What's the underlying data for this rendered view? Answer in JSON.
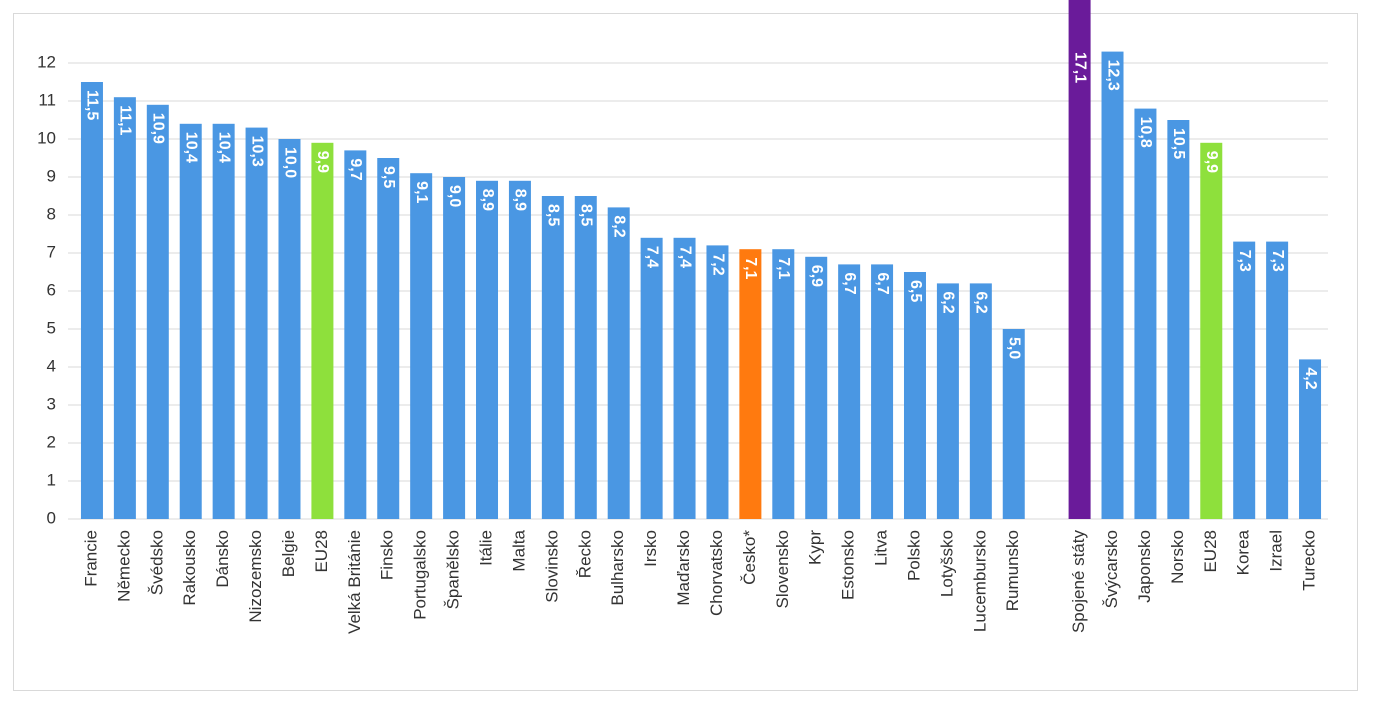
{
  "chart_data": {
    "type": "bar",
    "categories": [
      "Francie",
      "Německo",
      "Švédsko",
      "Rakousko",
      "Dánsko",
      "Nizozemsko",
      "Belgie",
      "EU28",
      "Velká Británie",
      "Finsko",
      "Portugalsko",
      "Španělsko",
      "Itálie",
      "Malta",
      "Slovinsko",
      "Řecko",
      "Bulharsko",
      "Irsko",
      "Maďarsko",
      "Chorvatsko",
      "Česko*",
      "Slovensko",
      "Kypr",
      "Estonsko",
      "Litva",
      "Polsko",
      "Lotyšsko",
      "Lucembursko",
      "Rumunsko",
      null,
      "Spojené státy",
      "Švýcarsko",
      "Japonsko",
      "Norsko",
      "EU28",
      "Korea",
      "Izrael",
      "Turecko"
    ],
    "values": [
      11.5,
      11.1,
      10.9,
      10.4,
      10.4,
      10.3,
      10.0,
      9.9,
      9.7,
      9.5,
      9.1,
      9.0,
      8.9,
      8.9,
      8.5,
      8.5,
      8.2,
      7.4,
      7.4,
      7.2,
      7.1,
      7.1,
      6.9,
      6.7,
      6.7,
      6.5,
      6.2,
      6.2,
      5.0,
      null,
      17.1,
      12.3,
      10.8,
      10.5,
      9.9,
      7.3,
      7.3,
      4.2
    ],
    "value_labels": [
      "11,5",
      "11,1",
      "10,9",
      "10,4",
      "10,4",
      "10,3",
      "10,0",
      "9,9",
      "9,7",
      "9,5",
      "9,1",
      "9,0",
      "8,9",
      "8,9",
      "8,5",
      "8,5",
      "8,2",
      "7,4",
      "7,4",
      "7,2",
      "7,1",
      "7,1",
      "6,9",
      "6,7",
      "6,7",
      "6,5",
      "6,2",
      "6,2",
      "5,0",
      null,
      "17,1",
      "12,3",
      "10,8",
      "10,5",
      "9,9",
      "7,3",
      "7,3",
      "4,2"
    ],
    "colors": [
      "#4a97e3",
      "#4a97e3",
      "#4a97e3",
      "#4a97e3",
      "#4a97e3",
      "#4a97e3",
      "#4a97e3",
      "#8ee03c",
      "#4a97e3",
      "#4a97e3",
      "#4a97e3",
      "#4a97e3",
      "#4a97e3",
      "#4a97e3",
      "#4a97e3",
      "#4a97e3",
      "#4a97e3",
      "#4a97e3",
      "#4a97e3",
      "#4a97e3",
      "#ff7a0f",
      "#4a97e3",
      "#4a97e3",
      "#4a97e3",
      "#4a97e3",
      "#4a97e3",
      "#4a97e3",
      "#4a97e3",
      "#4a97e3",
      null,
      "#6a1b9a",
      "#4a97e3",
      "#4a97e3",
      "#4a97e3",
      "#8ee03c",
      "#4a97e3",
      "#4a97e3",
      "#4a97e3"
    ],
    "ylim": [
      0,
      12.5
    ],
    "yticks": [
      0,
      1,
      2,
      3,
      4,
      5,
      6,
      7,
      8,
      9,
      10,
      11,
      12
    ],
    "grid": true
  }
}
